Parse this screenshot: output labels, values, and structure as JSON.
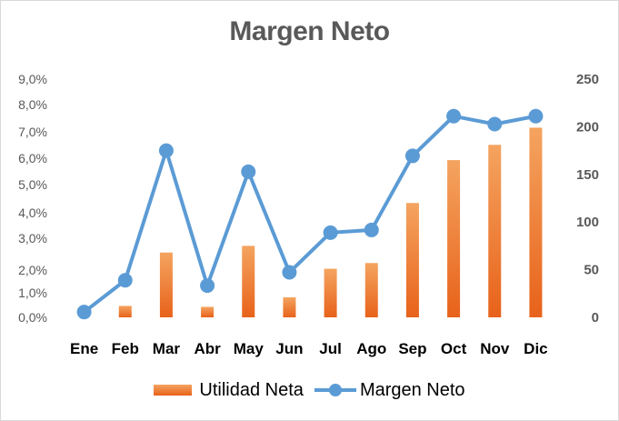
{
  "chart_data": {
    "type": "bar",
    "title": "Margen Neto",
    "categories": [
      "Ene",
      "Feb",
      "Mar",
      "Abr",
      "May",
      "Jun",
      "Jul",
      "Ago",
      "Sep",
      "Oct",
      "Nov",
      "Dic"
    ],
    "series": [
      {
        "name": "Utilidad Neta",
        "type": "bar",
        "axis": "right",
        "values": [
          0,
          12,
          68,
          11,
          75,
          21,
          51,
          57,
          120,
          165,
          181,
          199
        ],
        "color": "#ed7d31"
      },
      {
        "name": "Margen Neto",
        "type": "line",
        "axis": "left",
        "values": [
          0.2,
          1.4,
          6.3,
          1.2,
          5.5,
          1.7,
          3.2,
          3.3,
          6.1,
          7.6,
          7.3,
          7.6
        ],
        "color": "#5b9bd5"
      }
    ],
    "y_left": {
      "ylim": [
        0,
        9
      ],
      "ticks": [
        "0,0%",
        "1,0%",
        "2,0%",
        "3,0%",
        "4,0%",
        "5,0%",
        "6,0%",
        "7,0%",
        "8,0%",
        "9,0%"
      ]
    },
    "y_right": {
      "ylim": [
        0,
        250
      ],
      "ticks": [
        "0",
        "50",
        "100",
        "150",
        "200",
        "250"
      ]
    },
    "grid": false,
    "legend": "bottom"
  }
}
